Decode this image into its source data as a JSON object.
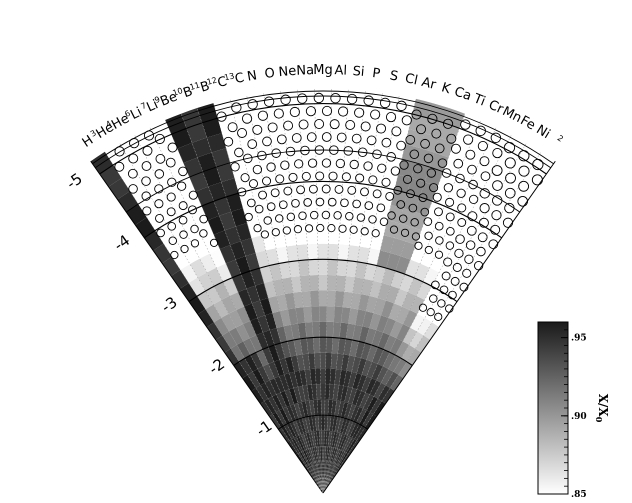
{
  "chart_data": {
    "type": "heatmap",
    "projection": "polar-fan",
    "elements": [
      {
        "symbol": "H",
        "mass": ""
      },
      {
        "symbol": "He",
        "mass": "3"
      },
      {
        "symbol": "He",
        "mass": "4"
      },
      {
        "symbol": "Li",
        "mass": "6"
      },
      {
        "symbol": "Li",
        "mass": "7"
      },
      {
        "symbol": "Be",
        "mass": "9"
      },
      {
        "symbol": "B",
        "mass": "10"
      },
      {
        "symbol": "B",
        "mass": "11"
      },
      {
        "symbol": "C",
        "mass": "12"
      },
      {
        "symbol": "C",
        "mass": "13"
      },
      {
        "symbol": "N",
        "mass": ""
      },
      {
        "symbol": "O",
        "mass": ""
      },
      {
        "symbol": "Ne",
        "mass": ""
      },
      {
        "symbol": "Na",
        "mass": ""
      },
      {
        "symbol": "Mg",
        "mass": ""
      },
      {
        "symbol": "Al",
        "mass": ""
      },
      {
        "symbol": "Si",
        "mass": ""
      },
      {
        "symbol": "P",
        "mass": ""
      },
      {
        "symbol": "S",
        "mass": ""
      },
      {
        "symbol": "Cl",
        "mass": ""
      },
      {
        "symbol": "Ar",
        "mass": ""
      },
      {
        "symbol": "K",
        "mass": ""
      },
      {
        "symbol": "Ca",
        "mass": ""
      },
      {
        "symbol": "Ti",
        "mass": ""
      },
      {
        "symbol": "Cr",
        "mass": ""
      },
      {
        "symbol": "Mn",
        "mass": ""
      },
      {
        "symbol": "Fe",
        "mass": ""
      },
      {
        "symbol": "Ni",
        "mass": ""
      },
      {
        "symbol": "",
        "mass": "2"
      }
    ],
    "radial_axis": {
      "range": [
        0,
        -5.2
      ],
      "ticks": [
        -1,
        -2,
        -3,
        -4,
        -5
      ],
      "tick_labels": [
        "-1",
        "-2",
        "-3",
        "-4",
        "-5"
      ]
    },
    "colorbar": {
      "title": "X/X",
      "title_subscript": "0",
      "range": [
        0.85,
        0.96
      ],
      "ticks": [
        0.85,
        0.9,
        0.95
      ],
      "tick_labels": [
        ".85",
        ".90",
        ".95"
      ],
      "colors": {
        "low": "#ffffff",
        "high": "#1a1a1a"
      }
    },
    "dark_region_r": -1.4,
    "circle_region_r": -3.3,
    "wedge_profiles": [
      {
        "wedges": [
          0
        ],
        "dark_from_r": 0,
        "dark_to_r": -5.2,
        "circles_below_r": -5.2
      },
      {
        "wedges": [
          1,
          2,
          3
        ],
        "dark_from_r": 0,
        "dark_to_r": -2.0,
        "circles_below_r": -3.5
      },
      {
        "wedges": [
          4
        ],
        "dark_from_r": 0,
        "dark_to_r": -1.5,
        "circles_below_r": -3.4
      },
      {
        "wedges": [
          5,
          6,
          7
        ],
        "dark_from_r": -1.2,
        "dark_to_r": -5.2,
        "circles_below_r": -5.2
      },
      {
        "wedges": [
          8
        ],
        "dark_from_r": -1.3,
        "dark_to_r": -1.8,
        "circles_below_r": -3.4
      },
      {
        "wedges": [
          20,
          21,
          22
        ],
        "gray_from_r": -3.1,
        "gray_to_r": -5.2,
        "circles_below_r": -3.4
      },
      {
        "wedges": [
          26,
          27,
          28
        ],
        "dark_from_r": 0,
        "dark_to_r": -1.3,
        "circles_below_r": -2.6
      }
    ]
  }
}
